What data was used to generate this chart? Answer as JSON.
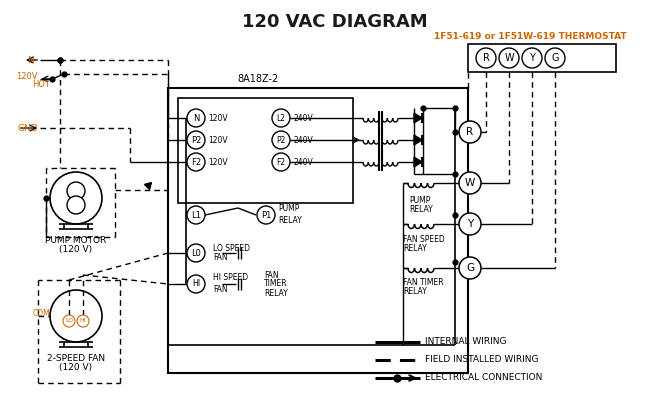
{
  "title": "120 VAC DIAGRAM",
  "title_color": "#1a1a1a",
  "title_fontsize": 13,
  "bg_color": "#ffffff",
  "thermostat_label": "1F51-619 or 1F51W-619 THERMOSTAT",
  "control_box_label": "8A18Z-2",
  "pump_motor_label1": "PUMP MOTOR",
  "pump_motor_label2": "(120 V)",
  "fan_label1": "2-SPEED FAN",
  "fan_label2": "(120 V)",
  "legend_internal": "INTERNAL WIRING",
  "legend_field": "FIELD INSTALLED WIRING",
  "legend_elec": "ELECTRICAL CONNECTION",
  "orange_color": "#cc6600",
  "black_color": "#000000"
}
